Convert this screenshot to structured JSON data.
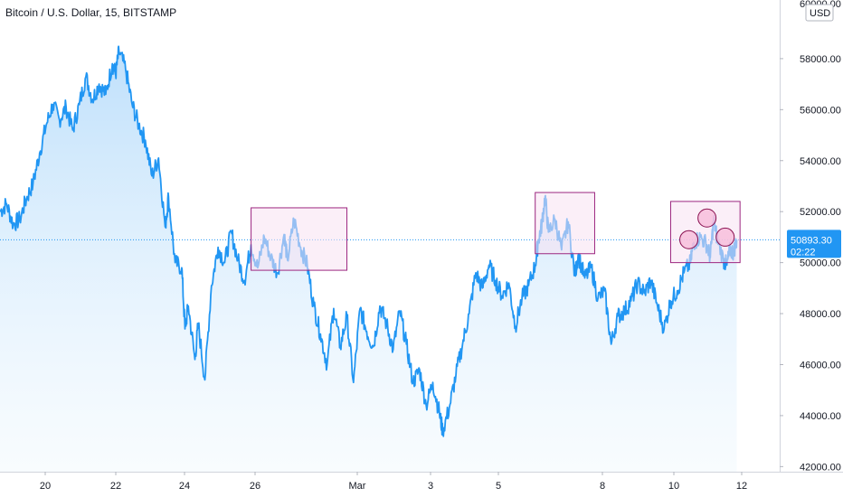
{
  "title": "Bitcoin / U.S. Dollar, 15, BITSTAMP",
  "currency_badge": "USD",
  "top_clipped_label": "60000.00",
  "colors": {
    "line": "#2196f3",
    "area_top": "#bbdefb",
    "area_bottom": "#e3f2fd",
    "price_label_bg": "#2196f3",
    "box_fill": "#f8e1f3",
    "box_stroke": "#9c2780",
    "circle_fill": "#f8bbd9",
    "circle_stroke": "#880e4f"
  },
  "chart_data": {
    "type": "area",
    "x_ticks": [
      "20",
      "22",
      "24",
      "26",
      "Mar",
      "3",
      "5",
      "8",
      "10",
      "12"
    ],
    "y_ticks": [
      "42000.00",
      "44000.00",
      "46000.00",
      "48000.00",
      "50000.00",
      "52000.00",
      "54000.00",
      "56000.00",
      "58000.00"
    ],
    "ylim": [
      41800,
      60300
    ],
    "x_range_days": [
      -1.4,
      22.2
    ],
    "last_price": "50893.30",
    "countdown": "02:22",
    "series": [
      {
        "values": [
          [
            -1.4,
            52000
          ],
          [
            -1.2,
            52300
          ],
          [
            -1.0,
            51500
          ],
          [
            -0.8,
            51700
          ],
          [
            -0.6,
            52500
          ],
          [
            -0.4,
            53100
          ],
          [
            -0.2,
            54300
          ],
          [
            0.0,
            55400
          ],
          [
            0.2,
            56200
          ],
          [
            0.4,
            55600
          ],
          [
            0.6,
            56100
          ],
          [
            0.8,
            55200
          ],
          [
            1.0,
            56200
          ],
          [
            1.2,
            57300
          ],
          [
            1.4,
            56400
          ],
          [
            1.6,
            57000
          ],
          [
            1.8,
            56600
          ],
          [
            2.0,
            57800
          ],
          [
            2.1,
            57400
          ],
          [
            2.2,
            58300
          ],
          [
            2.4,
            57600
          ],
          [
            2.6,
            56200
          ],
          [
            2.8,
            55400
          ],
          [
            3.0,
            54800
          ],
          [
            3.2,
            53400
          ],
          [
            3.4,
            54100
          ],
          [
            3.6,
            51400
          ],
          [
            3.7,
            52600
          ],
          [
            3.9,
            50000
          ],
          [
            4.1,
            49800
          ],
          [
            4.2,
            47400
          ],
          [
            4.3,
            48300
          ],
          [
            4.5,
            46200
          ],
          [
            4.6,
            47600
          ],
          [
            4.8,
            45400
          ],
          [
            5.0,
            49100
          ],
          [
            5.2,
            50600
          ],
          [
            5.4,
            50000
          ],
          [
            5.6,
            51200
          ],
          [
            5.8,
            50100
          ],
          [
            6.0,
            49300
          ],
          [
            6.2,
            50700
          ],
          [
            6.4,
            49800
          ],
          [
            6.6,
            51000
          ],
          [
            6.8,
            50200
          ],
          [
            7.0,
            49600
          ],
          [
            7.2,
            51100
          ],
          [
            7.3,
            50100
          ],
          [
            7.5,
            51700
          ],
          [
            7.7,
            50600
          ],
          [
            7.9,
            49900
          ],
          [
            8.1,
            48300
          ],
          [
            8.3,
            47200
          ],
          [
            8.5,
            46000
          ],
          [
            8.7,
            48200
          ],
          [
            8.9,
            46700
          ],
          [
            9.1,
            47900
          ],
          [
            9.3,
            45300
          ],
          [
            9.5,
            48200
          ],
          [
            9.7,
            47300
          ],
          [
            9.9,
            46700
          ],
          [
            10.1,
            48300
          ],
          [
            10.3,
            47600
          ],
          [
            10.5,
            46600
          ],
          [
            10.7,
            48100
          ],
          [
            10.9,
            46800
          ],
          [
            11.1,
            45300
          ],
          [
            11.3,
            45800
          ],
          [
            11.5,
            44400
          ],
          [
            11.7,
            45300
          ],
          [
            11.9,
            44100
          ],
          [
            12.0,
            43400
          ],
          [
            12.2,
            44300
          ],
          [
            12.4,
            45600
          ],
          [
            12.6,
            46800
          ],
          [
            12.8,
            48000
          ],
          [
            13.0,
            49600
          ],
          [
            13.2,
            49000
          ],
          [
            13.4,
            49900
          ],
          [
            13.6,
            49300
          ],
          [
            13.8,
            48700
          ],
          [
            14.0,
            49200
          ],
          [
            14.2,
            47500
          ],
          [
            14.4,
            48600
          ],
          [
            14.6,
            49100
          ],
          [
            14.8,
            49900
          ],
          [
            14.9,
            50900
          ],
          [
            15.0,
            51500
          ],
          [
            15.1,
            52600
          ],
          [
            15.2,
            51200
          ],
          [
            15.4,
            51700
          ],
          [
            15.6,
            50500
          ],
          [
            15.8,
            51600
          ],
          [
            16.0,
            49500
          ],
          [
            16.1,
            50300
          ],
          [
            16.3,
            49400
          ],
          [
            16.5,
            49800
          ],
          [
            16.7,
            48600
          ],
          [
            16.9,
            48900
          ],
          [
            17.1,
            46800
          ],
          [
            17.3,
            47900
          ],
          [
            17.5,
            48100
          ],
          [
            17.7,
            48500
          ],
          [
            17.9,
            49200
          ],
          [
            18.1,
            48800
          ],
          [
            18.3,
            49300
          ],
          [
            18.5,
            48300
          ],
          [
            18.7,
            47400
          ],
          [
            18.9,
            48500
          ],
          [
            19.1,
            48900
          ],
          [
            19.3,
            49600
          ],
          [
            19.5,
            50000
          ],
          [
            19.6,
            50800
          ],
          [
            19.8,
            51000
          ],
          [
            20.0,
            50700
          ],
          [
            20.1,
            50200
          ],
          [
            20.2,
            51700
          ],
          [
            20.3,
            51000
          ],
          [
            20.5,
            50100
          ],
          [
            20.6,
            49900
          ],
          [
            20.7,
            50500
          ],
          [
            20.8,
            50400
          ],
          [
            20.9,
            50893.3
          ]
        ]
      }
    ],
    "annotation_boxes": [
      {
        "x": [
          6.2,
          9.1
        ],
        "y": [
          49700,
          52150
        ]
      },
      {
        "x": [
          14.8,
          16.6
        ],
        "y": [
          50350,
          52750
        ]
      },
      {
        "x": [
          18.9,
          21.0
        ],
        "y": [
          50000,
          52400
        ]
      }
    ],
    "annotation_circles": [
      {
        "x": 19.45,
        "y": 50900
      },
      {
        "x": 20.0,
        "y": 51750
      },
      {
        "x": 20.55,
        "y": 51000
      }
    ]
  }
}
